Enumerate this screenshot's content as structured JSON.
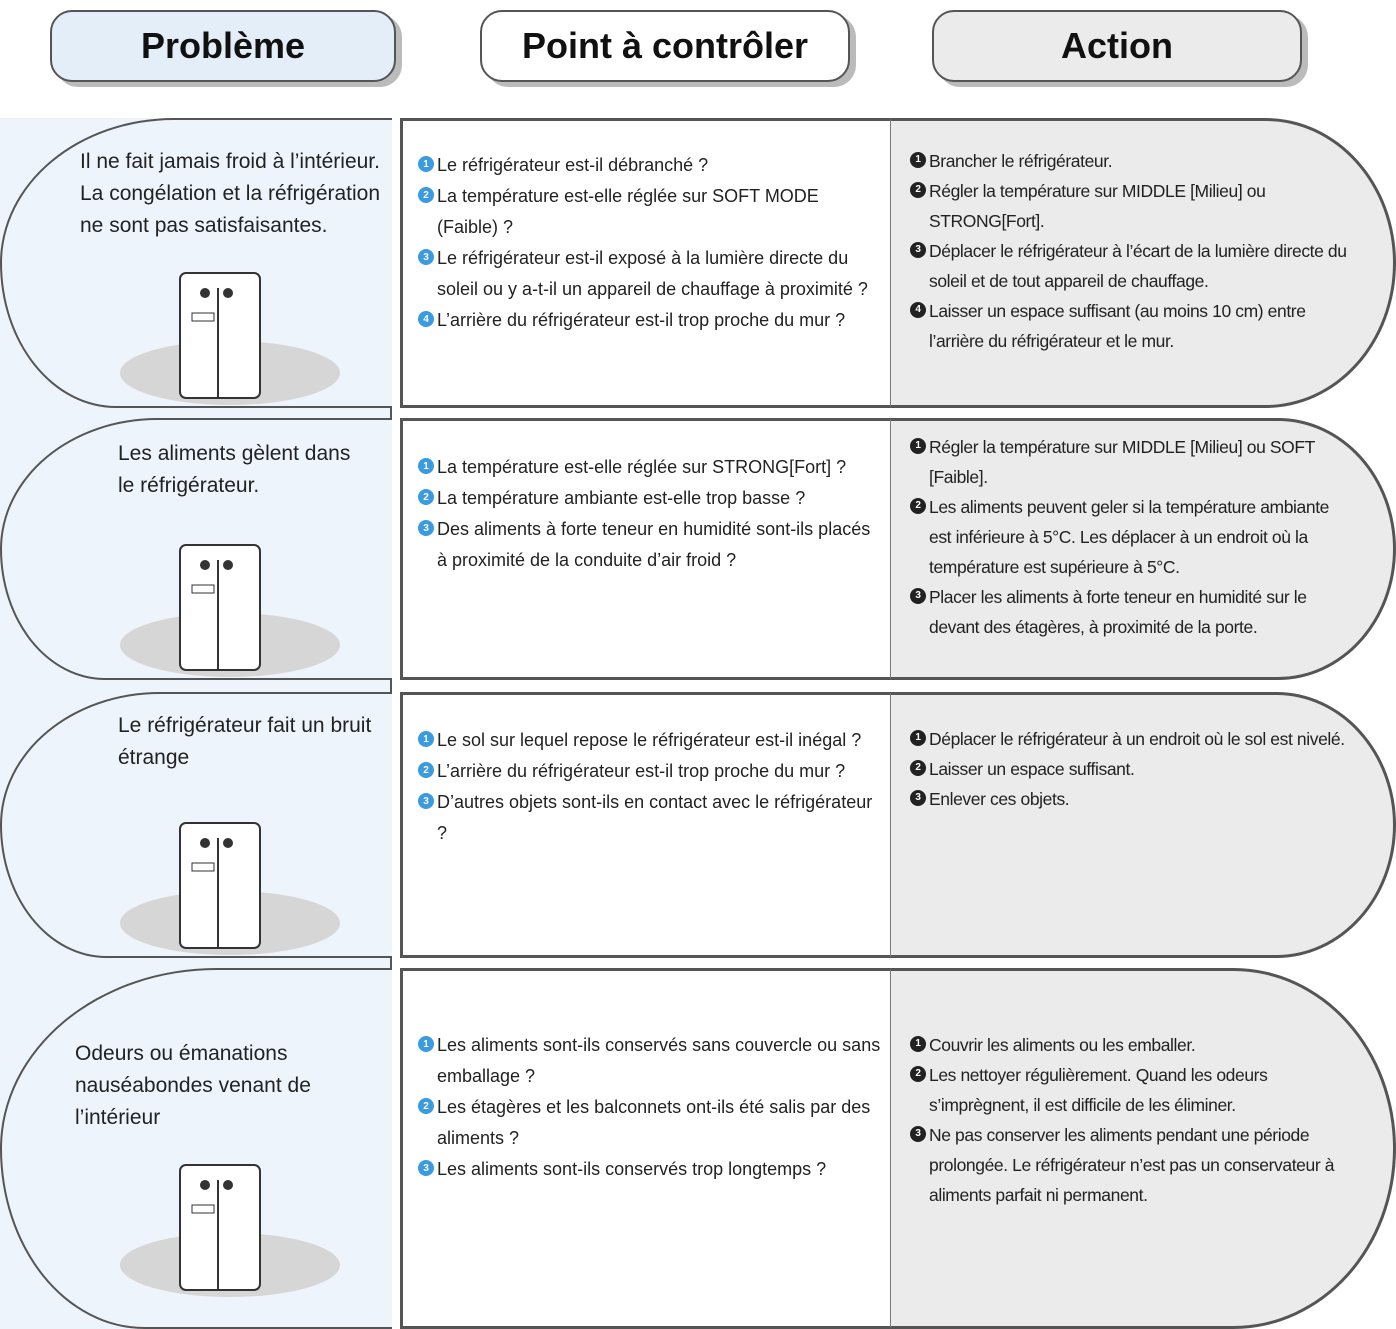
{
  "header": {
    "problem": "Problème",
    "check": "Point à contrôler",
    "action": "Action"
  },
  "rows": [
    {
      "problem": "Il ne fait jamais froid à l’intérieur. La congélation et la réfrigération ne sont pas satisfaisantes.",
      "checks": [
        {
          "n": "1",
          "text": "Le réfrigérateur est-il débranché ?"
        },
        {
          "n": "2",
          "text": "La température est-elle réglée sur SOFT MODE (Faible) ?"
        },
        {
          "n": "3",
          "text": "Le réfrigérateur est-il exposé à la lumière directe du soleil ou y a-t-il un appareil de chauffage à proximité ?"
        },
        {
          "n": "4",
          "text": "L’arrière du réfrigérateur est-il trop proche du mur ?"
        }
      ],
      "actions": [
        {
          "n": "1",
          "text": "Brancher le réfrigérateur."
        },
        {
          "n": "2",
          "text": "Régler la température sur MIDDLE [Milieu] ou STRONG[Fort]."
        },
        {
          "n": "3",
          "text": "Déplacer le réfrigérateur à l’écart de la lumière directe du soleil et de tout appareil de chauffage."
        },
        {
          "n": "4",
          "text": "Laisser un espace suffisant (au moins 10 cm) entre l’arrière du réfrigérateur et le mur."
        }
      ]
    },
    {
      "problem": "Les aliments gèlent dans le réfrigérateur.",
      "checks": [
        {
          "n": "1",
          "text": "La température est-elle réglée sur STRONG[Fort] ?"
        },
        {
          "n": "2",
          "text": "La température ambiante est-elle trop basse ?"
        },
        {
          "n": "3",
          "text": "Des aliments à forte teneur en humidité sont-ils placés à proximité de la conduite d’air froid ?"
        }
      ],
      "actions": [
        {
          "n": "1",
          "text": "Régler la température sur MIDDLE [Milieu] ou SOFT [Faible]."
        },
        {
          "n": "2",
          "text": "Les aliments peuvent geler si la température ambiante est inférieure à 5°C. Les déplacer à un endroit où la température est supérieure à 5°C."
        },
        {
          "n": "3",
          "text": "Placer les aliments à forte teneur en humidité sur le devant des étagères, à proximité de la porte."
        }
      ]
    },
    {
      "problem": "Le réfrigérateur fait un bruit étrange",
      "checks": [
        {
          "n": "1",
          "text": "Le sol sur lequel repose le réfrigérateur est-il inégal ?"
        },
        {
          "n": "2",
          "text": "L’arrière du réfrigérateur est-il trop proche du mur ?"
        },
        {
          "n": "3",
          "text": "D’autres objets sont-ils en contact avec le réfrigérateur ?"
        }
      ],
      "actions": [
        {
          "n": "1",
          "text": "Déplacer le réfrigérateur à un endroit où le sol est nivelé."
        },
        {
          "n": "2",
          "text": "Laisser un espace suffisant."
        },
        {
          "n": "3",
          "text": "Enlever ces objets."
        }
      ]
    },
    {
      "problem": "Odeurs ou émanations nauséabondes venant de l’intérieur",
      "checks": [
        {
          "n": "1",
          "text": "Les aliments sont-ils conservés sans couvercle ou sans emballage ?"
        },
        {
          "n": "2",
          "text": "Les étagères et les balconnets ont-ils été salis par des aliments ?"
        },
        {
          "n": "3",
          "text": "Les aliments sont-ils conservés trop longtemps ?"
        }
      ],
      "actions": [
        {
          "n": "1",
          "text": "Couvrir les aliments ou les emballer."
        },
        {
          "n": "2",
          "text": "Les nettoyer régulièrement. Quand les odeurs s’imprègnent, il est difficile de les éliminer."
        },
        {
          "n": "3",
          "text": "Ne pas conserver les aliments pendant une période prolongée. Le réfrigérateur n’est pas un conservateur à aliments parfait ni permanent."
        }
      ]
    }
  ]
}
